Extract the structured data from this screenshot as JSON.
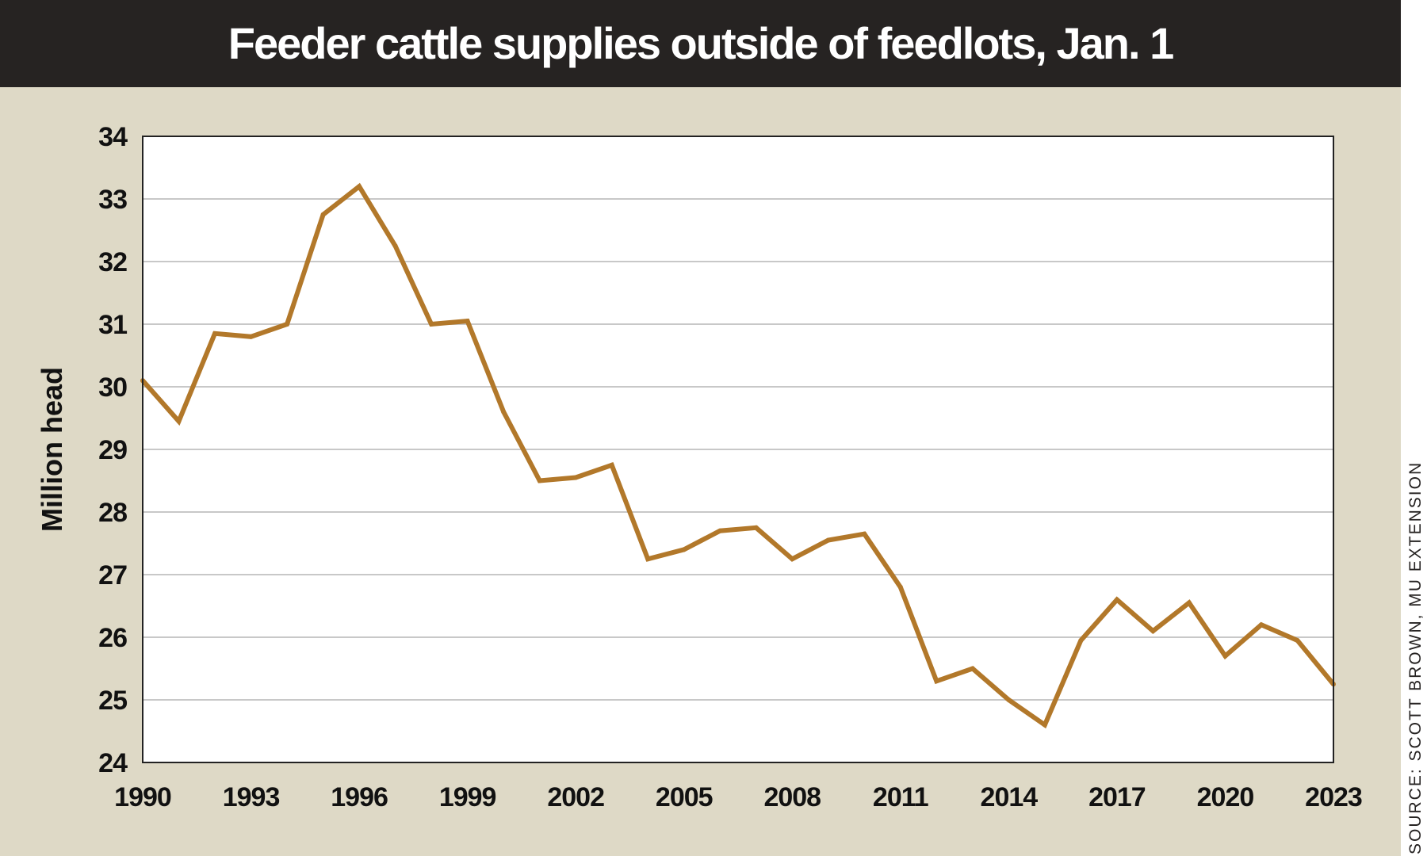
{
  "title": "Feeder cattle supplies outside of feedlots, Jan. 1",
  "source": "SOURCE: SCOTT BROWN, MU EXTENSION",
  "colors": {
    "frame": "#ded9c6",
    "title_bar": "#262322",
    "plot_bg": "#ffffff",
    "line": "#b2782a",
    "grid": "#c8c8c8"
  },
  "chart_data": {
    "type": "line",
    "title": "Feeder cattle supplies outside of feedlots, Jan. 1",
    "xlabel": "",
    "ylabel": "Million head",
    "ylim": [
      24,
      34
    ],
    "xlim": [
      1990,
      2023
    ],
    "yticks": [
      24,
      25,
      26,
      27,
      28,
      29,
      30,
      31,
      32,
      33,
      34
    ],
    "xticks": [
      1990,
      1993,
      1996,
      1999,
      2002,
      2005,
      2008,
      2011,
      2014,
      2017,
      2020,
      2023
    ],
    "grid": "horizontal",
    "legend": "none",
    "series": [
      {
        "x": [
          1990,
          1991,
          1992,
          1993,
          1994,
          1995,
          1996,
          1997,
          1998,
          1999,
          2000,
          2001,
          2002,
          2003,
          2004,
          2005,
          2006,
          2007,
          2008,
          2009,
          2010,
          2011,
          2012,
          2013,
          2014,
          2015,
          2016,
          2017,
          2018,
          2019,
          2020,
          2021,
          2022,
          2023
        ],
        "values": [
          30.1,
          29.45,
          30.85,
          30.8,
          31.0,
          32.75,
          33.2,
          32.25,
          31.0,
          31.05,
          29.6,
          28.5,
          28.55,
          28.75,
          27.25,
          27.4,
          27.7,
          27.75,
          27.25,
          27.55,
          27.65,
          26.8,
          25.3,
          25.5,
          25.0,
          24.6,
          25.95,
          26.6,
          26.1,
          26.55,
          25.7,
          26.2,
          25.95,
          25.25
        ]
      }
    ]
  }
}
